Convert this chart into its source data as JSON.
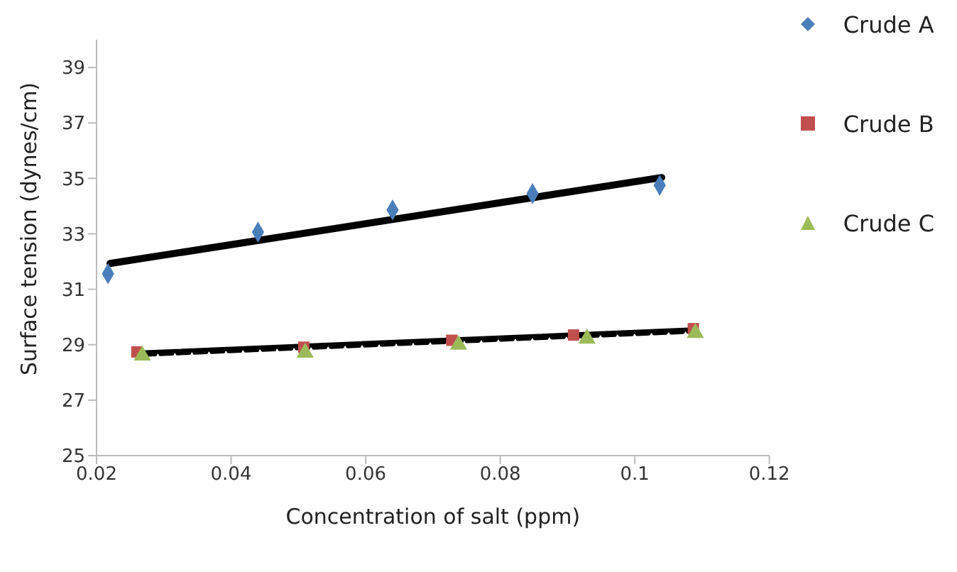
{
  "chart_data": {
    "type": "scatter",
    "xlabel": "Concentration of salt (ppm)",
    "ylabel": "Surface tension (dynes/cm)",
    "xlim": [
      0.02,
      0.12
    ],
    "xticks": [
      0.02,
      0.04,
      0.06,
      0.08,
      0.1,
      0.12
    ],
    "ylim": [
      25,
      40
    ],
    "yticks": [
      25,
      27,
      29,
      31,
      33,
      35,
      37,
      39
    ],
    "grid": false,
    "legend": "right",
    "series": [
      {
        "name": "Crude A",
        "color": "#4a7ebb",
        "marker": "diamond",
        "x": [
          0.0217,
          0.044,
          0.064,
          0.0848,
          0.1037
        ],
        "values": [
          31.56,
          33.06,
          33.86,
          34.45,
          34.75
        ]
      },
      {
        "name": "Crude B",
        "color": "#c0504d",
        "marker": "square",
        "x": [
          0.026,
          0.0508,
          0.0728,
          0.0909,
          0.1087
        ],
        "values": [
          28.74,
          28.91,
          29.16,
          29.35,
          29.58
        ]
      },
      {
        "name": "Crude C",
        "color": "#9bbb59",
        "marker": "triangle",
        "x": [
          0.0268,
          0.051,
          0.0738,
          0.0929,
          0.109
        ],
        "values": [
          28.61,
          28.71,
          29.0,
          29.22,
          29.42
        ]
      },
      {
        "type": "line",
        "color": "#000000",
        "line_style": "solid",
        "marker": "none",
        "x": [
          0.022,
          0.104
        ],
        "values": [
          31.93,
          35.03
        ]
      },
      {
        "type": "line",
        "color": "#000000",
        "line_style": "solid",
        "marker": "none",
        "x": [
          0.026,
          0.1087
        ],
        "values": [
          28.71,
          29.55
        ]
      },
      {
        "type": "line",
        "color": "#000000",
        "line_style": "dashed",
        "marker": "none",
        "x": [
          0.027,
          0.109
        ],
        "values": [
          28.64,
          29.48
        ]
      }
    ]
  }
}
